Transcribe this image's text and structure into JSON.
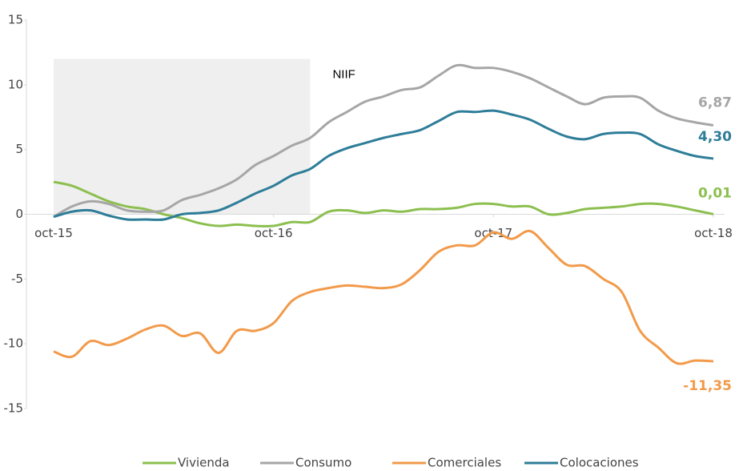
{
  "chart_data": {
    "type": "line",
    "categories": [
      "oct-15",
      null,
      null,
      null,
      null,
      null,
      null,
      null,
      null,
      null,
      null,
      null,
      "oct-16",
      null,
      null,
      null,
      null,
      null,
      null,
      null,
      null,
      null,
      null,
      null,
      "oct-17",
      null,
      null,
      null,
      null,
      null,
      null,
      null,
      null,
      null,
      null,
      null,
      "oct-18"
    ],
    "series": [
      {
        "name": "Vivienda",
        "color": "#8cbf4f",
        "values": [
          2.5,
          2.2,
          1.6,
          1.0,
          0.6,
          0.4,
          0.0,
          -0.3,
          -0.7,
          -0.9,
          -0.8,
          -0.9,
          -0.9,
          -0.6,
          -0.6,
          0.2,
          0.3,
          0.1,
          0.3,
          0.2,
          0.4,
          0.4,
          0.5,
          0.8,
          0.8,
          0.6,
          0.6,
          0.0,
          0.1,
          0.4,
          0.5,
          0.6,
          0.8,
          0.8,
          0.6,
          0.3,
          0.01
        ],
        "value_labels": [
          null,
          null,
          null,
          null,
          null,
          null,
          null,
          null,
          null,
          null,
          null,
          null,
          null,
          null,
          null,
          null,
          null,
          null,
          null,
          null,
          null,
          null,
          null,
          null,
          null,
          null,
          null,
          null,
          null,
          null,
          null,
          null,
          null,
          null,
          null,
          null,
          "0,01"
        ]
      },
      {
        "name": "Consumo",
        "color": "#a6a6a6",
        "values": [
          -0.2,
          0.6,
          1.0,
          0.8,
          0.3,
          0.2,
          0.3,
          1.1,
          1.5,
          2.0,
          2.7,
          3.8,
          4.5,
          5.3,
          5.9,
          7.1,
          7.9,
          8.7,
          9.1,
          9.6,
          9.8,
          10.7,
          11.5,
          11.3,
          11.3,
          11.0,
          10.5,
          9.8,
          9.1,
          8.5,
          9.0,
          9.1,
          9.0,
          8.0,
          7.4,
          7.1,
          6.87
        ],
        "value_labels": [
          null,
          null,
          null,
          null,
          null,
          null,
          null,
          null,
          null,
          null,
          null,
          null,
          null,
          null,
          null,
          null,
          null,
          null,
          null,
          null,
          null,
          null,
          null,
          null,
          null,
          null,
          null,
          null,
          null,
          null,
          null,
          null,
          null,
          null,
          null,
          null,
          "6,87"
        ]
      },
      {
        "name": "Comerciales",
        "color": "#f29a4a",
        "values": [
          -10.6,
          -11.0,
          -9.8,
          -10.1,
          -9.6,
          -8.9,
          -8.6,
          -9.4,
          -9.2,
          -10.7,
          -9.0,
          -9.0,
          -8.4,
          -6.7,
          -6.0,
          -5.7,
          -5.5,
          -5.6,
          -5.7,
          -5.4,
          -4.3,
          -2.9,
          -2.4,
          -2.4,
          -1.4,
          -1.9,
          -1.3,
          -2.6,
          -3.9,
          -4.0,
          -5.0,
          -6.0,
          -9.0,
          -10.3,
          -11.5,
          -11.3,
          -11.35
        ],
        "value_labels": [
          null,
          null,
          null,
          null,
          null,
          null,
          null,
          null,
          null,
          null,
          null,
          null,
          null,
          null,
          null,
          null,
          null,
          null,
          null,
          null,
          null,
          null,
          null,
          null,
          null,
          null,
          null,
          null,
          null,
          null,
          null,
          null,
          null,
          null,
          null,
          null,
          "-11,35"
        ]
      },
      {
        "name": "Colocaciones",
        "color": "#2e7d98",
        "values": [
          -0.2,
          0.2,
          0.3,
          -0.1,
          -0.4,
          -0.4,
          -0.4,
          0.0,
          0.1,
          0.3,
          0.9,
          1.6,
          2.2,
          3.0,
          3.5,
          4.5,
          5.1,
          5.5,
          5.9,
          6.2,
          6.5,
          7.2,
          7.9,
          7.9,
          8.0,
          7.7,
          7.3,
          6.6,
          6.0,
          5.8,
          6.2,
          6.3,
          6.2,
          5.4,
          4.9,
          4.5,
          4.3
        ],
        "value_labels": [
          null,
          null,
          null,
          null,
          null,
          null,
          null,
          null,
          null,
          null,
          null,
          null,
          null,
          null,
          null,
          null,
          null,
          null,
          null,
          null,
          null,
          null,
          null,
          null,
          null,
          null,
          null,
          null,
          null,
          null,
          null,
          null,
          null,
          null,
          null,
          null,
          "4,30"
        ]
      }
    ],
    "highlight": {
      "label": "NIIF",
      "start": 0,
      "end": 14,
      "top": 12,
      "color": "#efefef"
    },
    "ylim": [
      -15,
      15
    ],
    "yticks": [
      -15,
      -10,
      -5,
      0,
      5,
      10,
      15
    ],
    "legend": "bottom"
  }
}
